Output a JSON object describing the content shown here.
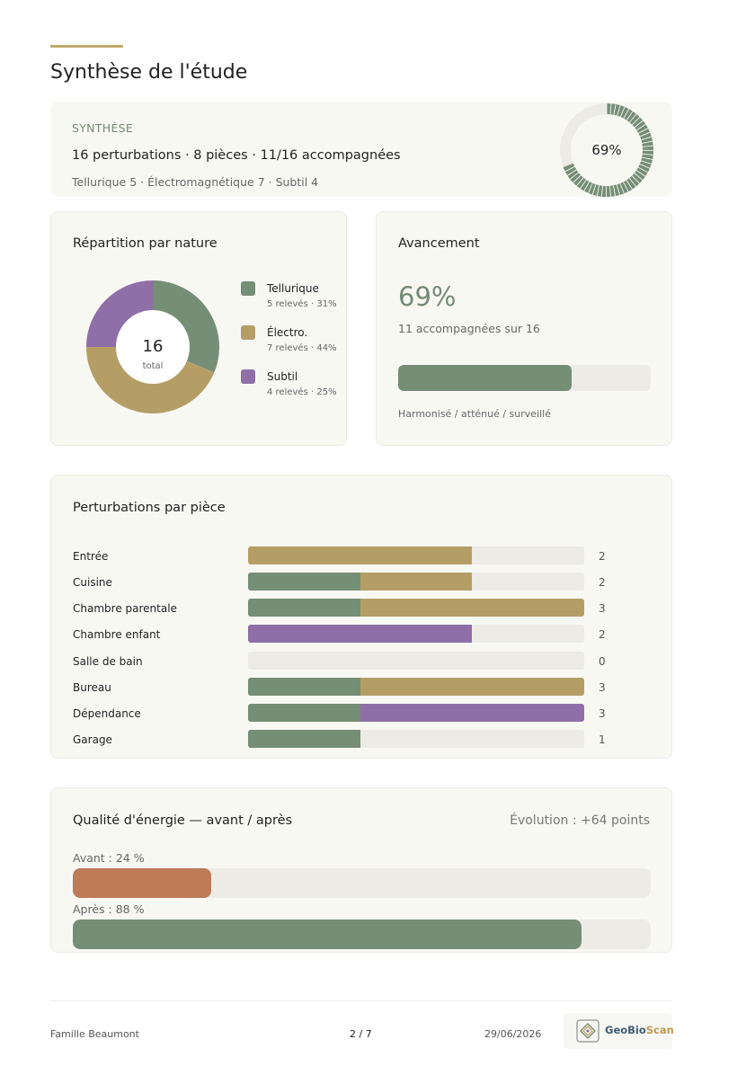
{
  "page_title": "Synthèse de l'étude",
  "synthese": {
    "label": "SYNTHÈSE",
    "main": "16 perturbations · 8 pièces · 11/16 accompagnées",
    "sub": "Tellurique 5 · Électromagnétique 7 · Subtil 4",
    "ring_percent_label": "69%",
    "ring_fraction": 0.69
  },
  "repartition": {
    "title": "Répartition par nature",
    "center_value": "16",
    "center_label": "total",
    "items": [
      {
        "name": "Tellurique",
        "detail": "5 relevés · 31%",
        "value": 5,
        "color": "#758e76"
      },
      {
        "name": "Électro.",
        "detail": "7 relevés · 44%",
        "value": 7,
        "color": "#b59e66"
      },
      {
        "name": "Subtil",
        "detail": "4 relevés · 25%",
        "value": 4,
        "color": "#8f6fa8"
      }
    ]
  },
  "avancement": {
    "title": "Avancement",
    "percent_label": "69%",
    "subtitle": "11 accompagnées sur 16",
    "fraction": 0.6875,
    "footer": "Harmonisé / atténué / surveillé"
  },
  "perturbations": {
    "title": "Perturbations par pièce",
    "max": 3,
    "rows": [
      {
        "label": "Entrée",
        "count": "2",
        "segments": [
          {
            "type": "electro",
            "value": 2
          }
        ]
      },
      {
        "label": "Cuisine",
        "count": "2",
        "segments": [
          {
            "type": "tellurique",
            "value": 1
          },
          {
            "type": "electro",
            "value": 1
          }
        ]
      },
      {
        "label": "Chambre parentale",
        "count": "3",
        "segments": [
          {
            "type": "tellurique",
            "value": 1
          },
          {
            "type": "electro",
            "value": 2
          }
        ]
      },
      {
        "label": "Chambre enfant",
        "count": "2",
        "segments": [
          {
            "type": "subtil",
            "value": 2
          }
        ]
      },
      {
        "label": "Salle de bain",
        "count": "0",
        "segments": []
      },
      {
        "label": "Bureau",
        "count": "3",
        "segments": [
          {
            "type": "tellurique",
            "value": 1
          },
          {
            "type": "electro",
            "value": 2
          }
        ]
      },
      {
        "label": "Dépendance",
        "count": "3",
        "segments": [
          {
            "type": "tellurique",
            "value": 1
          },
          {
            "type": "subtil",
            "value": 2
          }
        ]
      },
      {
        "label": "Garage",
        "count": "1",
        "segments": [
          {
            "type": "tellurique",
            "value": 1
          }
        ]
      }
    ]
  },
  "colors": {
    "tellurique": "#758e76",
    "electro": "#b59e66",
    "subtil": "#8f6fa8",
    "avant": "#bd7b58",
    "apres": "#758e76",
    "track": "#ecebe5",
    "accent": "#c2aa6c"
  },
  "qualite": {
    "title": "Qualité d'énergie — avant / après",
    "evolution": "Évolution : +64 points",
    "avant_label": "Avant : 24 %",
    "avant_value": 0.24,
    "apres_label": "Après : 88 %",
    "apres_value": 0.88
  },
  "footer": {
    "client": "Famille Beaumont",
    "page": "2 / 7",
    "date": "29/06/2026",
    "logo_geo": "GeoBio",
    "logo_scan": "Scan"
  }
}
